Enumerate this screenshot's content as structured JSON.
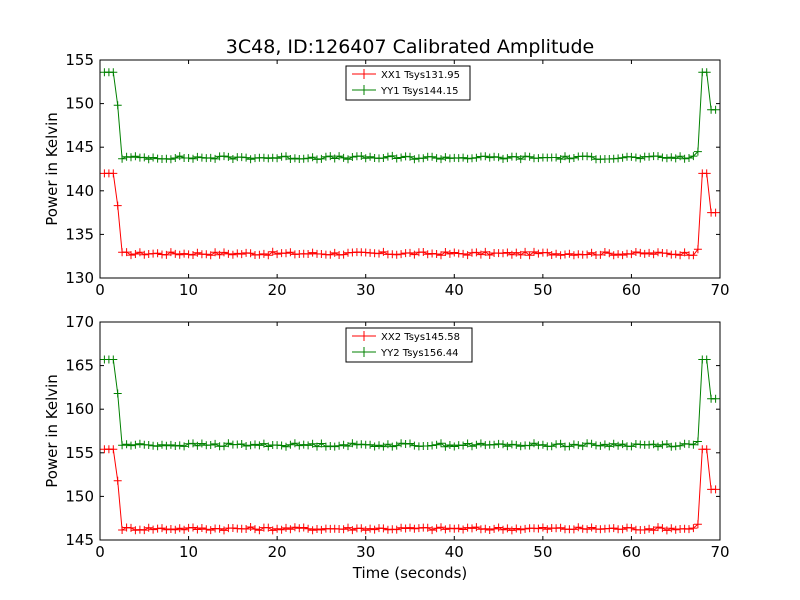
{
  "figure": {
    "title": "3C48, ID:126407 Calibrated Amplitude",
    "xlabel": "Time (seconds)"
  },
  "chart_data": [
    {
      "type": "line",
      "ylabel": "Power in Kelvin",
      "xlim": [
        0,
        70
      ],
      "ylim": [
        130,
        155
      ],
      "xticks": [
        0,
        10,
        20,
        30,
        40,
        50,
        60,
        70
      ],
      "yticks": [
        130,
        135,
        140,
        145,
        150,
        155
      ],
      "grid": false,
      "legend_position": "top-center",
      "series": [
        {
          "name": "XX1 Tsys131.95",
          "color": "#ff0000",
          "base": 132.8,
          "on": 142.0,
          "x_drop": 2.3,
          "x_rise": 67.8,
          "drop_mid": 138.3,
          "rise_mid": 133.3,
          "end_mid": 137.5,
          "noise": 0.2
        },
        {
          "name": "YY1 Tsys144.15",
          "color": "#008000",
          "base": 143.8,
          "on": 153.6,
          "x_drop": 2.3,
          "x_rise": 67.8,
          "drop_mid": 149.8,
          "rise_mid": 144.5,
          "end_mid": 149.3,
          "noise": 0.2
        }
      ]
    },
    {
      "type": "line",
      "ylabel": "Power in Kelvin",
      "xlim": [
        0,
        70
      ],
      "ylim": [
        145,
        170
      ],
      "xticks": [
        0,
        10,
        20,
        30,
        40,
        50,
        60,
        70
      ],
      "yticks": [
        145,
        150,
        155,
        160,
        165,
        170
      ],
      "grid": false,
      "legend_position": "top-center",
      "series": [
        {
          "name": "XX2 Tsys145.58",
          "color": "#ff0000",
          "base": 146.3,
          "on": 155.4,
          "x_drop": 2.3,
          "x_rise": 67.8,
          "drop_mid": 151.8,
          "rise_mid": 146.8,
          "end_mid": 150.8,
          "noise": 0.2
        },
        {
          "name": "YY2 Tsys156.44",
          "color": "#008000",
          "base": 155.9,
          "on": 165.7,
          "x_drop": 2.3,
          "x_rise": 67.8,
          "drop_mid": 161.8,
          "rise_mid": 156.3,
          "end_mid": 161.2,
          "noise": 0.2
        }
      ]
    }
  ]
}
